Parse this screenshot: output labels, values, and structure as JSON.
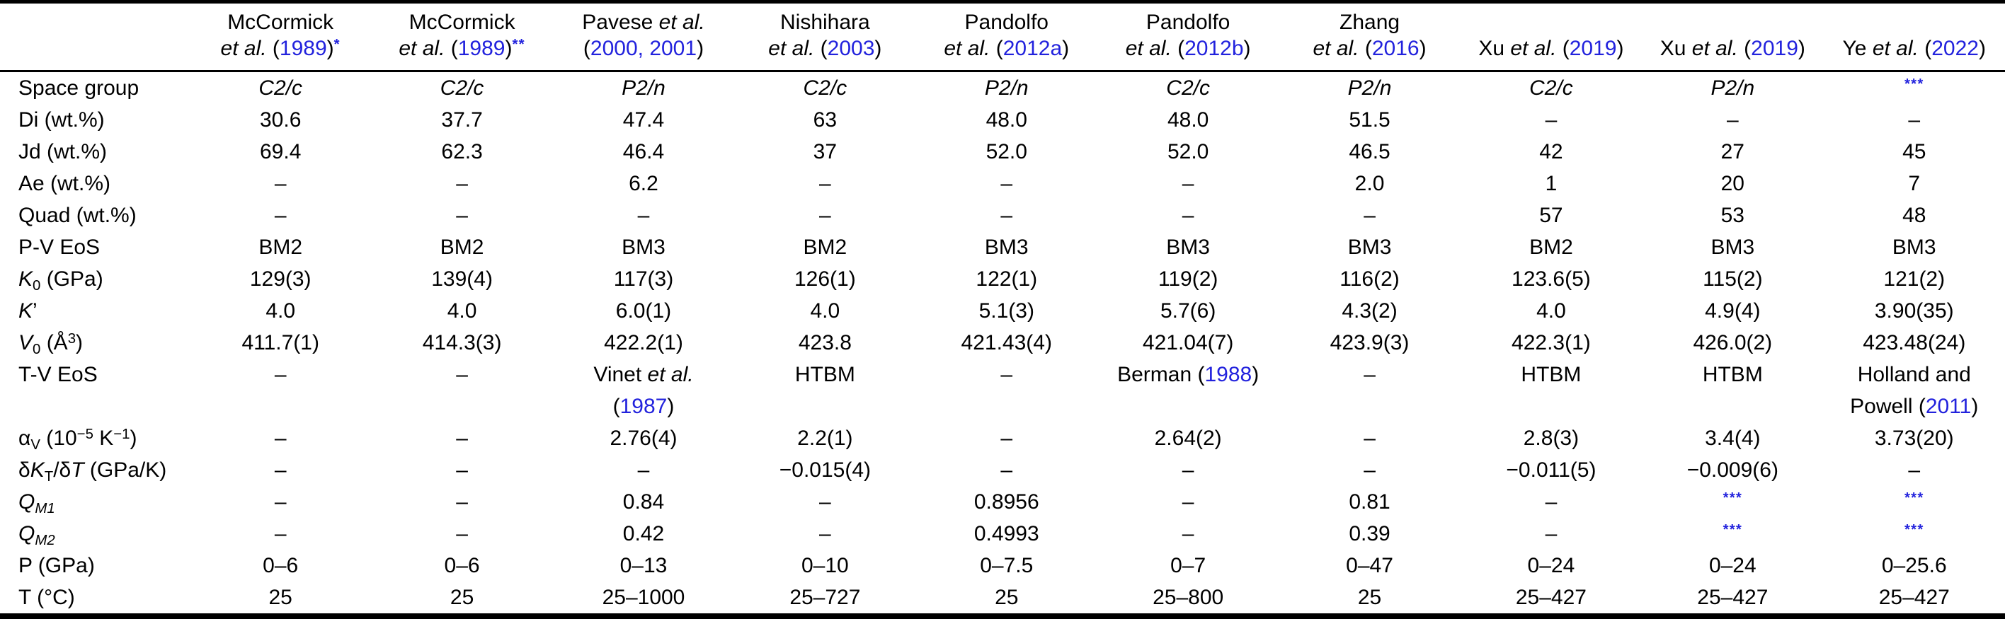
{
  "colors": {
    "text": "#000000",
    "link_blue": "#2222dd",
    "rule": "#000000",
    "background": "#ffffff"
  },
  "table": {
    "corner_label": "",
    "columns": [
      {
        "id": "mccormick-1989-a",
        "segs": [
          {
            "t": "McCormick"
          },
          {
            "br": true
          },
          {
            "t": "et al. ",
            "s": "i"
          },
          {
            "t": "("
          },
          {
            "t": "1989",
            "s": "blue"
          },
          {
            "t": ")"
          },
          {
            "t": "*",
            "s": "blue sup stars"
          }
        ]
      },
      {
        "id": "mccormick-1989-b",
        "segs": [
          {
            "t": "McCormick"
          },
          {
            "br": true
          },
          {
            "t": "et al. ",
            "s": "i"
          },
          {
            "t": "("
          },
          {
            "t": "1989",
            "s": "blue"
          },
          {
            "t": ")"
          },
          {
            "t": "**",
            "s": "blue sup stars"
          }
        ]
      },
      {
        "id": "pavese-2000-2001",
        "segs": [
          {
            "t": "Pavese "
          },
          {
            "t": "et al.",
            "s": "i"
          },
          {
            "br": true
          },
          {
            "t": "("
          },
          {
            "t": "2000,",
            "s": "blue"
          },
          {
            "t": " "
          },
          {
            "t": "2001",
            "s": "blue"
          },
          {
            "t": ")"
          }
        ]
      },
      {
        "id": "nishihara-2003",
        "segs": [
          {
            "t": "Nishihara"
          },
          {
            "br": true
          },
          {
            "t": "et al. ",
            "s": "i"
          },
          {
            "t": "("
          },
          {
            "t": "2003",
            "s": "blue"
          },
          {
            "t": ")"
          }
        ]
      },
      {
        "id": "pandolfo-2012a",
        "segs": [
          {
            "t": "Pandolfo"
          },
          {
            "br": true
          },
          {
            "t": "et al. ",
            "s": "i"
          },
          {
            "t": "("
          },
          {
            "t": "2012a",
            "s": "blue"
          },
          {
            "t": ")"
          }
        ]
      },
      {
        "id": "pandolfo-2012b",
        "segs": [
          {
            "t": "Pandolfo"
          },
          {
            "br": true
          },
          {
            "t": "et al. ",
            "s": "i"
          },
          {
            "t": "("
          },
          {
            "t": "2012b",
            "s": "blue"
          },
          {
            "t": ")"
          }
        ]
      },
      {
        "id": "zhang-2016",
        "segs": [
          {
            "t": "Zhang"
          },
          {
            "br": true
          },
          {
            "t": "et al. ",
            "s": "i"
          },
          {
            "t": "("
          },
          {
            "t": "2016",
            "s": "blue"
          },
          {
            "t": ")"
          }
        ]
      },
      {
        "id": "xu-2019-a",
        "segs": [
          {
            "t": "Xu "
          },
          {
            "t": "et al. ",
            "s": "i"
          },
          {
            "t": "("
          },
          {
            "t": "2019",
            "s": "blue"
          },
          {
            "t": ")"
          }
        ]
      },
      {
        "id": "xu-2019-b",
        "segs": [
          {
            "t": "Xu "
          },
          {
            "t": "et al. ",
            "s": "i"
          },
          {
            "t": "("
          },
          {
            "t": "2019",
            "s": "blue"
          },
          {
            "t": ")"
          }
        ]
      },
      {
        "id": "ye-2022",
        "segs": [
          {
            "t": "Ye "
          },
          {
            "t": "et al. ",
            "s": "i"
          },
          {
            "t": "("
          },
          {
            "t": "2022",
            "s": "blue"
          },
          {
            "t": ")"
          }
        ]
      }
    ],
    "rows": [
      {
        "id": "space-group",
        "label": [
          {
            "t": "Space group"
          }
        ],
        "cells": [
          [
            {
              "t": "C2/c",
              "s": "i"
            }
          ],
          [
            {
              "t": "C2/c",
              "s": "i"
            }
          ],
          [
            {
              "t": "P2/n",
              "s": "i"
            }
          ],
          [
            {
              "t": "C2/c",
              "s": "i"
            }
          ],
          [
            {
              "t": "P2/n",
              "s": "i"
            }
          ],
          [
            {
              "t": "C2/c",
              "s": "i"
            }
          ],
          [
            {
              "t": "P2/n",
              "s": "i"
            }
          ],
          [
            {
              "t": "C2/c",
              "s": "i"
            }
          ],
          [
            {
              "t": "P2/n",
              "s": "i"
            }
          ],
          [
            {
              "t": "***",
              "s": "blue sup stars"
            }
          ]
        ]
      },
      {
        "id": "di",
        "label": [
          {
            "t": "Di (wt.%)"
          }
        ],
        "cells": [
          "30.6",
          "37.7",
          "47.4",
          "63",
          "48.0",
          "48.0",
          "51.5",
          "–",
          "–",
          "–"
        ]
      },
      {
        "id": "jd",
        "label": [
          {
            "t": "Jd (wt.%)"
          }
        ],
        "cells": [
          "69.4",
          "62.3",
          "46.4",
          "37",
          "52.0",
          "52.0",
          "46.5",
          "42",
          "27",
          "45"
        ]
      },
      {
        "id": "ae",
        "label": [
          {
            "t": "Ae (wt.%)"
          }
        ],
        "cells": [
          "–",
          "–",
          "6.2",
          "–",
          "–",
          "–",
          "2.0",
          "1",
          "20",
          "7"
        ]
      },
      {
        "id": "quad",
        "label": [
          {
            "t": "Quad (wt.%)"
          }
        ],
        "cells": [
          "–",
          "–",
          "–",
          "–",
          "–",
          "–",
          "–",
          "57",
          "53",
          "48"
        ]
      },
      {
        "id": "pv-eos",
        "label": [
          {
            "t": "P-V EoS"
          }
        ],
        "cells": [
          "BM2",
          "BM2",
          "BM3",
          "BM2",
          "BM3",
          "BM3",
          "BM3",
          "BM2",
          "BM3",
          "BM3"
        ]
      },
      {
        "id": "k0",
        "label": [
          {
            "t": "K",
            "s": "i"
          },
          {
            "t": "0",
            "s": "sub"
          },
          {
            "t": " (GPa)"
          }
        ],
        "cells": [
          "129(3)",
          "139(4)",
          "117(3)",
          "126(1)",
          "122(1)",
          "119(2)",
          "116(2)",
          "123.6(5)",
          "115(2)",
          "121(2)"
        ]
      },
      {
        "id": "k-prime",
        "label": [
          {
            "t": "K",
            "s": "i"
          },
          {
            "t": "’"
          }
        ],
        "cells": [
          "4.0",
          "4.0",
          "6.0(1)",
          "4.0",
          "5.1(3)",
          "5.7(6)",
          "4.3(2)",
          "4.0",
          "4.9(4)",
          "3.90(35)"
        ]
      },
      {
        "id": "v0",
        "label": [
          {
            "t": "V",
            "s": "i"
          },
          {
            "t": "0",
            "s": "sub"
          },
          {
            "t": " (Å"
          },
          {
            "t": "3",
            "s": "sup"
          },
          {
            "t": ")"
          }
        ],
        "cells": [
          "411.7(1)",
          "414.3(3)",
          "422.2(1)",
          "423.8",
          "421.43(4)",
          "421.04(7)",
          "423.9(3)",
          "422.3(1)",
          "426.0(2)",
          "423.48(24)"
        ]
      },
      {
        "id": "tv-eos",
        "label": [
          {
            "t": "T-V EoS"
          }
        ],
        "cells": [
          "–",
          "–",
          [
            {
              "t": "Vinet "
            },
            {
              "t": "et al.",
              "s": "i"
            },
            {
              "br": true
            },
            {
              "t": "("
            },
            {
              "t": "1987",
              "s": "blue"
            },
            {
              "t": ")"
            }
          ],
          "HTBM",
          "–",
          [
            {
              "t": "Berman ("
            },
            {
              "t": "1988",
              "s": "blue"
            },
            {
              "t": ")"
            }
          ],
          "–",
          "HTBM",
          "HTBM",
          [
            {
              "t": "Holland and"
            },
            {
              "br": true
            },
            {
              "t": "Powell ("
            },
            {
              "t": "2011",
              "s": "blue"
            },
            {
              "t": ")"
            }
          ]
        ]
      },
      {
        "id": "alpha-v",
        "label": [
          {
            "t": "α"
          },
          {
            "t": "V",
            "s": "sub"
          },
          {
            "t": " (10"
          },
          {
            "t": "−5",
            "s": "sup"
          },
          {
            "t": " K"
          },
          {
            "t": "−1",
            "s": "sup"
          },
          {
            "t": ")"
          }
        ],
        "cells": [
          "–",
          "–",
          "2.76(4)",
          "2.2(1)",
          "–",
          "2.64(2)",
          "–",
          "2.8(3)",
          "3.4(4)",
          "3.73(20)"
        ]
      },
      {
        "id": "dkt-dt",
        "label": [
          {
            "t": "δ"
          },
          {
            "t": "K",
            "s": "i"
          },
          {
            "t": "T",
            "s": "sub"
          },
          {
            "t": "/δ"
          },
          {
            "t": "T",
            "s": "i"
          },
          {
            "t": " (GPa/K)"
          }
        ],
        "cells": [
          "–",
          "–",
          "–",
          "−0.015(4)",
          "–",
          "–",
          "–",
          "−0.011(5)",
          "−0.009(6)",
          "–"
        ]
      },
      {
        "id": "qm1",
        "label": [
          {
            "t": "Q",
            "s": "i"
          },
          {
            "t": "M1",
            "s": "i sub"
          }
        ],
        "cells": [
          "–",
          "–",
          "0.84",
          "–",
          "0.8956",
          "–",
          "0.81",
          "–",
          [
            {
              "t": "***",
              "s": "blue sup stars"
            }
          ],
          [
            {
              "t": "***",
              "s": "blue sup stars"
            }
          ]
        ]
      },
      {
        "id": "qm2",
        "label": [
          {
            "t": "Q",
            "s": "i"
          },
          {
            "t": "M2",
            "s": "i sub"
          }
        ],
        "cells": [
          "–",
          "–",
          "0.42",
          "–",
          "0.4993",
          "–",
          "0.39",
          "–",
          [
            {
              "t": "***",
              "s": "blue sup stars"
            }
          ],
          [
            {
              "t": "***",
              "s": "blue sup stars"
            }
          ]
        ]
      },
      {
        "id": "p-range",
        "label": [
          {
            "t": "P (GPa)"
          }
        ],
        "cells": [
          "0–6",
          "0–6",
          "0–13",
          "0–10",
          "0–7.5",
          "0–7",
          "0–47",
          "0–24",
          "0–24",
          "0–25.6"
        ]
      },
      {
        "id": "t-range",
        "label": [
          {
            "t": "T (°C)"
          }
        ],
        "cells": [
          "25",
          "25",
          "25–1000",
          "25–727",
          "25",
          "25–800",
          "25",
          "25–427",
          "25–427",
          "25–427"
        ]
      }
    ]
  }
}
